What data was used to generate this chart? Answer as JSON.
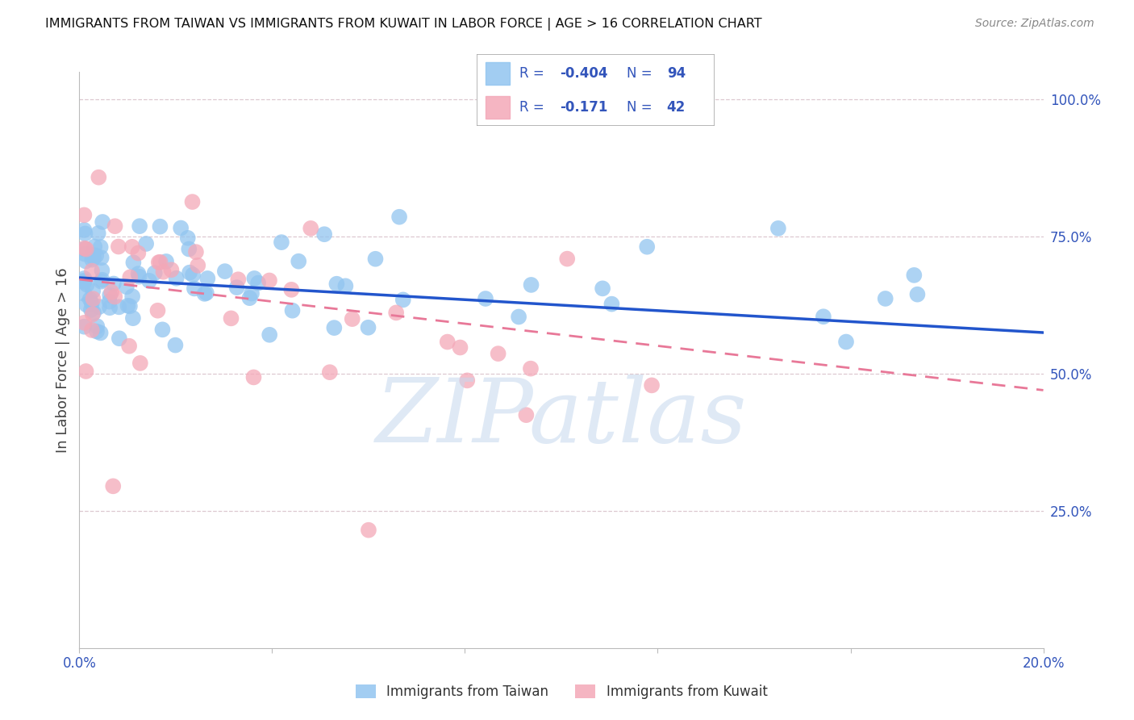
{
  "title": "IMMIGRANTS FROM TAIWAN VS IMMIGRANTS FROM KUWAIT IN LABOR FORCE | AGE > 16 CORRELATION CHART",
  "source": "Source: ZipAtlas.com",
  "ylabel": "In Labor Force | Age > 16",
  "ytick_labels_right": [
    "100.0%",
    "75.0%",
    "50.0%",
    "25.0%"
  ],
  "ytick_vals_right": [
    1.0,
    0.75,
    0.5,
    0.25
  ],
  "xlim": [
    0.0,
    0.2
  ],
  "ylim": [
    0.0,
    1.05
  ],
  "xtick_vals": [
    0.0,
    0.04,
    0.08,
    0.12,
    0.16,
    0.2
  ],
  "xtick_labels": [
    "0.0%",
    "",
    "",
    "",
    "",
    "20.0%"
  ],
  "taiwan_color": "#92c5f0",
  "kuwait_color": "#f4a8b8",
  "taiwan_line_color": "#2255cc",
  "kuwait_line_color": "#e87898",
  "legend_text_color": "#3355bb",
  "legend_value_color": "#3355bb",
  "background_color": "#ffffff",
  "grid_color": "#ddc8d0",
  "watermark": "ZIPatlas",
  "watermark_color": "#c5d8ee",
  "taiwan_N": 94,
  "kuwait_N": 42,
  "taiwan_R": -0.404,
  "kuwait_R": -0.171,
  "taiwan_line_x0": 0.0,
  "taiwan_line_y0": 0.675,
  "taiwan_line_x1": 0.2,
  "taiwan_line_y1": 0.575,
  "kuwait_line_x0": 0.0,
  "kuwait_line_y0": 0.672,
  "kuwait_line_x1": 0.2,
  "kuwait_line_y1": 0.47
}
